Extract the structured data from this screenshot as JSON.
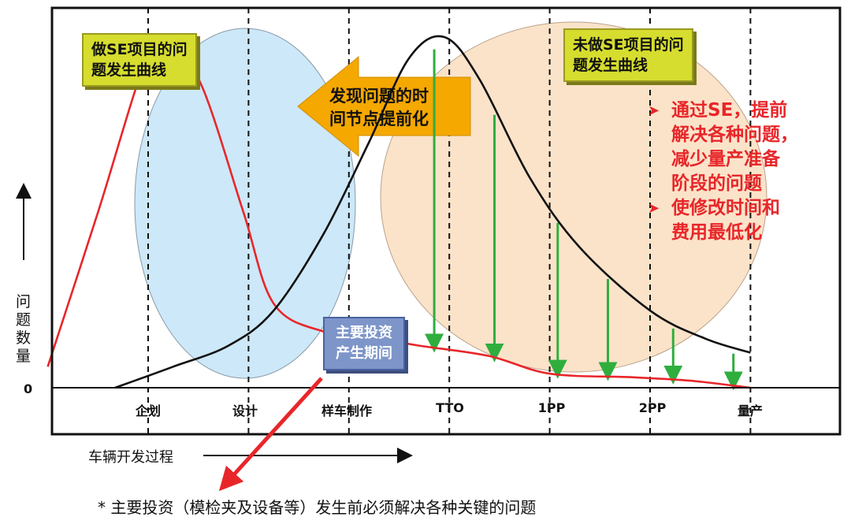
{
  "chart_data": {
    "type": "line",
    "title": "",
    "xlabel": "车辆开发过程",
    "ylabel": "问题数量",
    "y_zero_label": "0",
    "categories": [
      "企划",
      "设计",
      "样车制作",
      "TTO",
      "1PP",
      "2PP",
      "量产"
    ],
    "series": [
      {
        "name": "做SE项目的问题发生曲线",
        "color": "#e8262a",
        "points": [
          [
            -1.0,
            6
          ],
          [
            -0.5,
            50
          ],
          [
            0.0,
            95
          ],
          [
            0.25,
            98
          ],
          [
            0.55,
            85
          ],
          [
            0.95,
            50
          ],
          [
            1.25,
            24
          ],
          [
            1.75,
            16
          ],
          [
            2.3,
            14
          ],
          [
            2.7,
            12
          ],
          [
            3.4,
            9
          ],
          [
            4.0,
            4
          ],
          [
            4.8,
            3
          ],
          [
            5.4,
            2
          ],
          [
            6.0,
            0
          ]
        ]
      },
      {
        "name": "未做SE项目的问题发生曲线",
        "color": "#111111",
        "points": [
          [
            -0.33,
            0
          ],
          [
            0.25,
            6
          ],
          [
            0.8,
            12
          ],
          [
            1.25,
            22
          ],
          [
            1.75,
            44
          ],
          [
            2.2,
            70
          ],
          [
            2.6,
            94
          ],
          [
            2.95,
            100
          ],
          [
            3.3,
            88
          ],
          [
            3.8,
            60
          ],
          [
            4.3,
            40
          ],
          [
            5.0,
            22
          ],
          [
            5.55,
            14
          ],
          [
            6.0,
            10
          ]
        ]
      }
    ],
    "xlim": [
      -1.1,
      6.0
    ],
    "ylim": [
      0,
      104
    ],
    "grid": "vertical dashed lines at each stage"
  },
  "annotations": {
    "box_se": [
      "做SE项目的问",
      "题发生曲线"
    ],
    "box_nose": [
      "未做SE项目的问",
      "题发生曲线"
    ],
    "arrow_text": [
      "发现问题的时",
      "间节点提前化"
    ],
    "invest_box": [
      "主要投资",
      "产生期间"
    ],
    "red_bullets": [
      [
        "通过SE，提前",
        "解决各种问题，",
        "减少量产准备",
        "阶段的问题"
      ],
      [
        "使修改时间和",
        "费用最低化"
      ]
    ],
    "bullet_symbol": "➤",
    "footnote": "* 主要投资（模检夹及设备等）发生前必须解决各种关键的问题"
  },
  "colors": {
    "blue_ellipse": "#cde8f8",
    "peach_ellipse": "#fbe3c9",
    "arrow_orange": "#f5a800",
    "green_arrow": "#2fae3e",
    "red_text": "#e8262a"
  }
}
